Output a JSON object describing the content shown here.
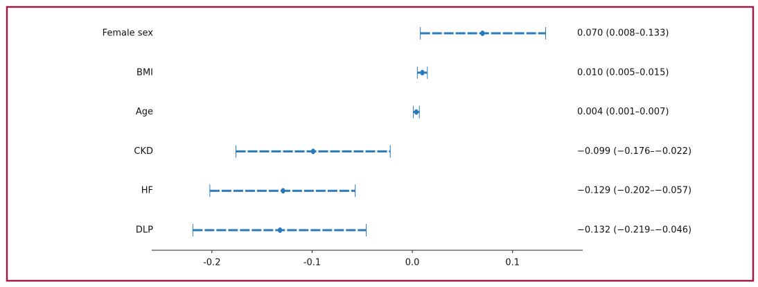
{
  "chart_data": {
    "type": "forest",
    "categories": [
      "Female sex",
      "BMI",
      "Age",
      "CKD",
      "HF",
      "DLP"
    ],
    "values": [
      0.07,
      0.01,
      0.004,
      -0.099,
      -0.129,
      -0.132
    ],
    "lower": [
      0.008,
      0.005,
      0.001,
      -0.176,
      -0.202,
      -0.219
    ],
    "upper": [
      0.133,
      0.015,
      0.007,
      -0.022,
      -0.057,
      -0.046
    ],
    "value_labels": [
      "0.070 (0.008–0.133)",
      "0.010 (0.005–0.015)",
      "0.004 (0.001–0.007)",
      "−0.099 (−0.176–−0.022)",
      "−0.129 (−0.202–−0.057)",
      "−0.132 (−0.219–−0.046)"
    ],
    "color": "#2a7ab9",
    "xlim": [
      -0.26,
      0.17
    ],
    "xticks": [
      -0.2,
      -0.1,
      {
        "value": 0,
        "label": "0.0"
      },
      0.1
    ]
  }
}
